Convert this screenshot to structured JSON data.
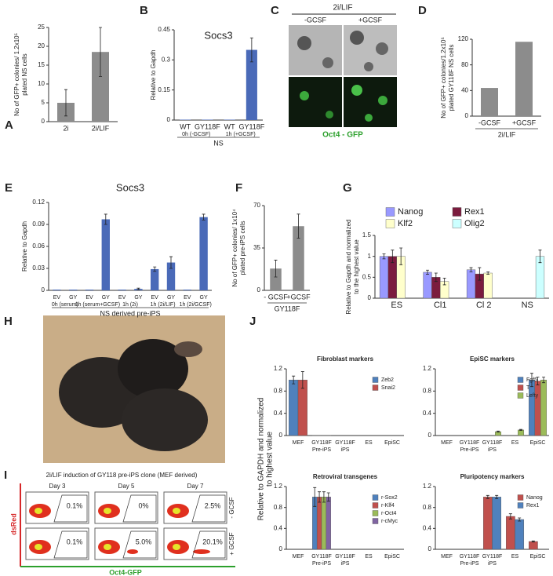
{
  "chart_data": [
    {
      "type": "bar",
      "panel": "A",
      "ylabel": [
        "No of GFP+ colonies/ 1.2x10⁵",
        "plated NS cells"
      ],
      "categories": [
        "2i",
        "2i/LIF"
      ],
      "values": [
        5,
        18.5
      ],
      "errors": [
        3.5,
        6.5
      ],
      "color": "#8c8c8c",
      "ylim": [
        0,
        25
      ],
      "yticks": [
        0,
        5,
        10,
        15,
        20,
        25
      ]
    },
    {
      "type": "bar",
      "panel": "B",
      "title": "Socs3",
      "ylabel": [
        "Relative to Gapdh"
      ],
      "categories": [
        "WT",
        "GY118F",
        "WT",
        "GY118F"
      ],
      "group_labels": [
        "0h (-GCSF)",
        "1h (+GCSF)"
      ],
      "xlabel": "NS",
      "values": [
        0.002,
        0.002,
        0.002,
        0.35
      ],
      "errors": [
        null,
        null,
        null,
        0.06
      ],
      "color": "#4a6ab8",
      "ylim": [
        0,
        0.45
      ],
      "yticks": [
        0,
        0.15,
        0.3,
        0.45
      ]
    },
    {
      "type": "bar",
      "panel": "D",
      "ylabel": [
        "No of GFP+ colonies/1.2x10⁵",
        "plated GY118F NS cells"
      ],
      "categories": [
        "-GCSF",
        "+GCSF"
      ],
      "xlabel": "2i/LIF",
      "values": [
        44,
        116
      ],
      "color": "#8c8c8c",
      "ylim": [
        0,
        120
      ],
      "yticks": [
        0,
        40,
        80,
        120
      ]
    },
    {
      "type": "bar",
      "panel": "E",
      "title": "Socs3",
      "ylabel": [
        "Relative to Gapdh"
      ],
      "categories": [
        "EV",
        "GY",
        "EV",
        "GY",
        "EV",
        "GY",
        "EV",
        "GY",
        "EV",
        "GY"
      ],
      "group_labels": [
        "0h (serum)",
        "1h (serum+GCSF)",
        "1h (2i)",
        "1h (2i/LIF)",
        "1h (2i/GCSF)"
      ],
      "xlabel": "NS derived pre-iPS",
      "values": [
        0.001,
        0.001,
        0.001,
        0.097,
        0.001,
        0.002,
        0.029,
        0.038,
        0.001,
        0.1
      ],
      "errors": [
        null,
        null,
        null,
        0.007,
        null,
        0.001,
        0.003,
        0.008,
        null,
        0.004
      ],
      "color": "#4a6ab8",
      "ylim": [
        0,
        0.12
      ],
      "yticks": [
        0,
        0.03,
        0.06,
        0.09,
        0.12
      ]
    },
    {
      "type": "bar",
      "panel": "F",
      "ylabel": [
        "No of GFP+ colonies/ 1x10⁴",
        "plated pre-iPS cells"
      ],
      "categories": [
        "- GCSF",
        "+GCSF"
      ],
      "xlabel": "GY118F",
      "values": [
        18,
        53
      ],
      "errors": [
        7,
        10
      ],
      "color": "#8c8c8c",
      "ylim": [
        0,
        70
      ],
      "yticks": [
        0,
        35,
        70
      ]
    },
    {
      "type": "bar",
      "panel": "G",
      "ylabel": [
        "Relative to Gapdh and normalized",
        "to the highest value"
      ],
      "categories": [
        "ES",
        "Cl1",
        "Cl 2",
        "NS"
      ],
      "legend": "top",
      "ylim": [
        0,
        1.5
      ],
      "yticks": [
        0,
        0.5,
        1,
        1.5
      ],
      "series": [
        {
          "name": "Nanog",
          "color": "#9999ff",
          "values": [
            1,
            0.62,
            0.68,
            0
          ],
          "errors": [
            0.06,
            0.05,
            0.05,
            null
          ]
        },
        {
          "name": "Rex1",
          "color": "#7b1c3e",
          "values": [
            1,
            0.5,
            0.58,
            0
          ],
          "errors": [
            0.15,
            0.1,
            0.15,
            null
          ]
        },
        {
          "name": "Klf2",
          "color": "#ffffcc",
          "values": [
            1,
            0.4,
            0.6,
            0
          ],
          "errors": [
            0.2,
            0.08,
            0.03,
            null
          ]
        },
        {
          "name": "Olig2",
          "color": "#ccffff",
          "values": [
            0,
            0,
            0,
            1
          ],
          "errors": [
            null,
            null,
            null,
            0.15
          ]
        }
      ]
    },
    {
      "type": "bar",
      "title": "Fibroblast markers",
      "categories": [
        [
          "MEF"
        ],
        [
          "GY118F",
          "Pre-iPS"
        ],
        [
          "GY118F",
          "iPS"
        ],
        [
          "ES"
        ],
        [
          "EpiSC"
        ]
      ],
      "legend": "right",
      "ylim": [
        0,
        1.2
      ],
      "yticks": [
        0,
        0.4,
        0.8,
        1.2
      ],
      "series": [
        {
          "name": "Zeb2",
          "color": "#4f81bd",
          "values": [
            1,
            0.005,
            0,
            0,
            0
          ],
          "errors": [
            0.07,
            null,
            null,
            null,
            null
          ]
        },
        {
          "name": "Snai2",
          "color": "#c0504d",
          "values": [
            1,
            0.005,
            0,
            0,
            0
          ],
          "errors": [
            0.15,
            null,
            null,
            null,
            null
          ]
        }
      ]
    },
    {
      "type": "bar",
      "title": "EpiSC markers",
      "categories": [
        [
          "MEF"
        ],
        [
          "GY118F",
          "Pre-iPS"
        ],
        [
          "GY118F",
          "iPS"
        ],
        [
          "ES"
        ],
        [
          "EpiSC"
        ]
      ],
      "legend": "right",
      "ylim": [
        0,
        1.2
      ],
      "yticks": [
        0,
        0.4,
        0.8,
        1.2
      ],
      "series": [
        {
          "name": "Fgf5",
          "color": "#4f81bd",
          "values": [
            0,
            0,
            0,
            0,
            1
          ],
          "errors": [
            null,
            null,
            null,
            null,
            0.12
          ]
        },
        {
          "name": "T",
          "color": "#c0504d",
          "values": [
            0,
            0,
            0,
            0,
            0.98
          ],
          "errors": [
            null,
            null,
            null,
            null,
            0.07
          ]
        },
        {
          "name": "Lefty",
          "color": "#9bbb59",
          "values": [
            0,
            0,
            0.07,
            0.1,
            1
          ],
          "errors": [
            null,
            null,
            0.01,
            0.01,
            0.05
          ]
        }
      ]
    },
    {
      "type": "bar",
      "title": "Retroviral transgenes",
      "categories": [
        [
          "MEF"
        ],
        [
          "GY118F",
          "Pre-iPS"
        ],
        [
          "GY118F",
          "iPS"
        ],
        [
          "ES"
        ],
        [
          "EpiSC"
        ]
      ],
      "legend": "right",
      "ylim": [
        0,
        1.2
      ],
      "yticks": [
        0,
        0.4,
        0.8,
        1.2
      ],
      "series": [
        {
          "name": "r-Sox2",
          "color": "#4f81bd",
          "values": [
            0,
            1,
            0,
            0,
            0
          ],
          "errors": [
            null,
            0.18,
            null,
            null,
            null
          ]
        },
        {
          "name": "r-Klf4",
          "color": "#c0504d",
          "values": [
            0,
            1,
            0,
            0,
            0
          ],
          "errors": [
            null,
            0.1,
            null,
            null,
            null
          ]
        },
        {
          "name": "r-Oct4",
          "color": "#9bbb59",
          "values": [
            0,
            1,
            0,
            0,
            0
          ],
          "errors": [
            null,
            0.1,
            null,
            null,
            null
          ]
        },
        {
          "name": "r-cMyc",
          "color": "#8064a2",
          "values": [
            0,
            1,
            0,
            0,
            0
          ],
          "errors": [
            null,
            0.08,
            null,
            null,
            null
          ]
        }
      ]
    },
    {
      "type": "bar",
      "title": "Pluripotency markers",
      "categories": [
        [
          "MEF"
        ],
        [
          "GY118F",
          "Pre-iPS"
        ],
        [
          "GY118F",
          "iPS"
        ],
        [
          "ES"
        ],
        [
          "EpiSC"
        ]
      ],
      "legend": "right",
      "ylim": [
        0,
        1.2
      ],
      "yticks": [
        0,
        0.4,
        0.8,
        1.2
      ],
      "series": [
        {
          "name": "Nanog",
          "color": "#c0504d",
          "values": [
            0,
            0,
            1,
            0.63,
            0.15
          ],
          "errors": [
            null,
            null,
            0.03,
            0.05,
            0.01
          ]
        },
        {
          "name": "Rex1",
          "color": "#4f81bd",
          "values": [
            0,
            0,
            1,
            0.57,
            0
          ],
          "errors": [
            null,
            null,
            0.03,
            0.03,
            null
          ]
        }
      ]
    }
  ],
  "panels": {
    "C": {
      "label": "C",
      "title": "2i/LIF",
      "columns": [
        "-GCSF",
        "+GCSF"
      ],
      "caption": "Oct4 - GFP"
    },
    "H": {
      "label": "H"
    },
    "I": {
      "label": "I",
      "title": "2i/LIF induction of GY118 pre-iPS clone (MEF derived)",
      "days": [
        "Day 3",
        "Day 5",
        "Day 7"
      ],
      "rows": [
        {
          "label": "- GCSF",
          "percent": [
            "0.1%",
            "0%",
            "2.5%"
          ]
        },
        {
          "label": "+ GCSF",
          "percent": [
            "0.1%",
            "5.0%",
            "20.1%"
          ]
        }
      ],
      "ylabel": "dsRed",
      "xlabel": "Oct4-GFP"
    },
    "J": {
      "label": "J",
      "ylabel": [
        "Relative to GAPDH and normalized",
        "to highest value"
      ]
    }
  }
}
